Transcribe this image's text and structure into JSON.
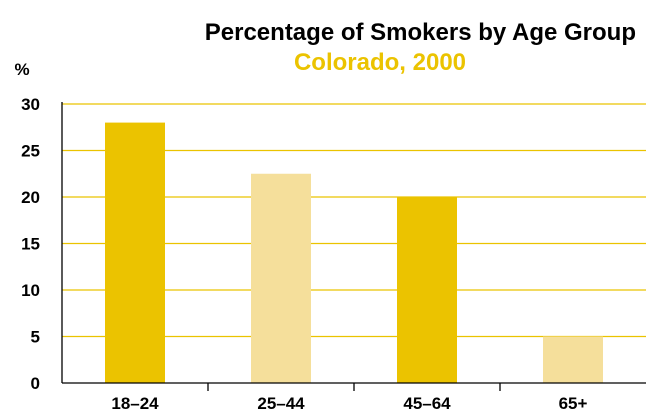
{
  "chart_data": {
    "type": "bar",
    "title": "Percentage of Smokers by Age Group",
    "subtitle": "Colorado, 2000",
    "ylabel": "%",
    "xlabel": "",
    "categories": [
      "18–24",
      "25–44",
      "45–64",
      "65+"
    ],
    "values": [
      28,
      22.5,
      20,
      5
    ],
    "ylim": [
      0,
      30
    ],
    "yticks": [
      0,
      5,
      10,
      15,
      20,
      25,
      30
    ],
    "grid": true,
    "colors": {
      "bar_dark": "#ebc300",
      "bar_light": "#f5df9b",
      "gridline": "#ebc300",
      "axis": "#000000",
      "subtitle": "#ebc300"
    },
    "bar_colors": [
      "#ebc300",
      "#f5df9b",
      "#ebc300",
      "#f5df9b"
    ]
  }
}
